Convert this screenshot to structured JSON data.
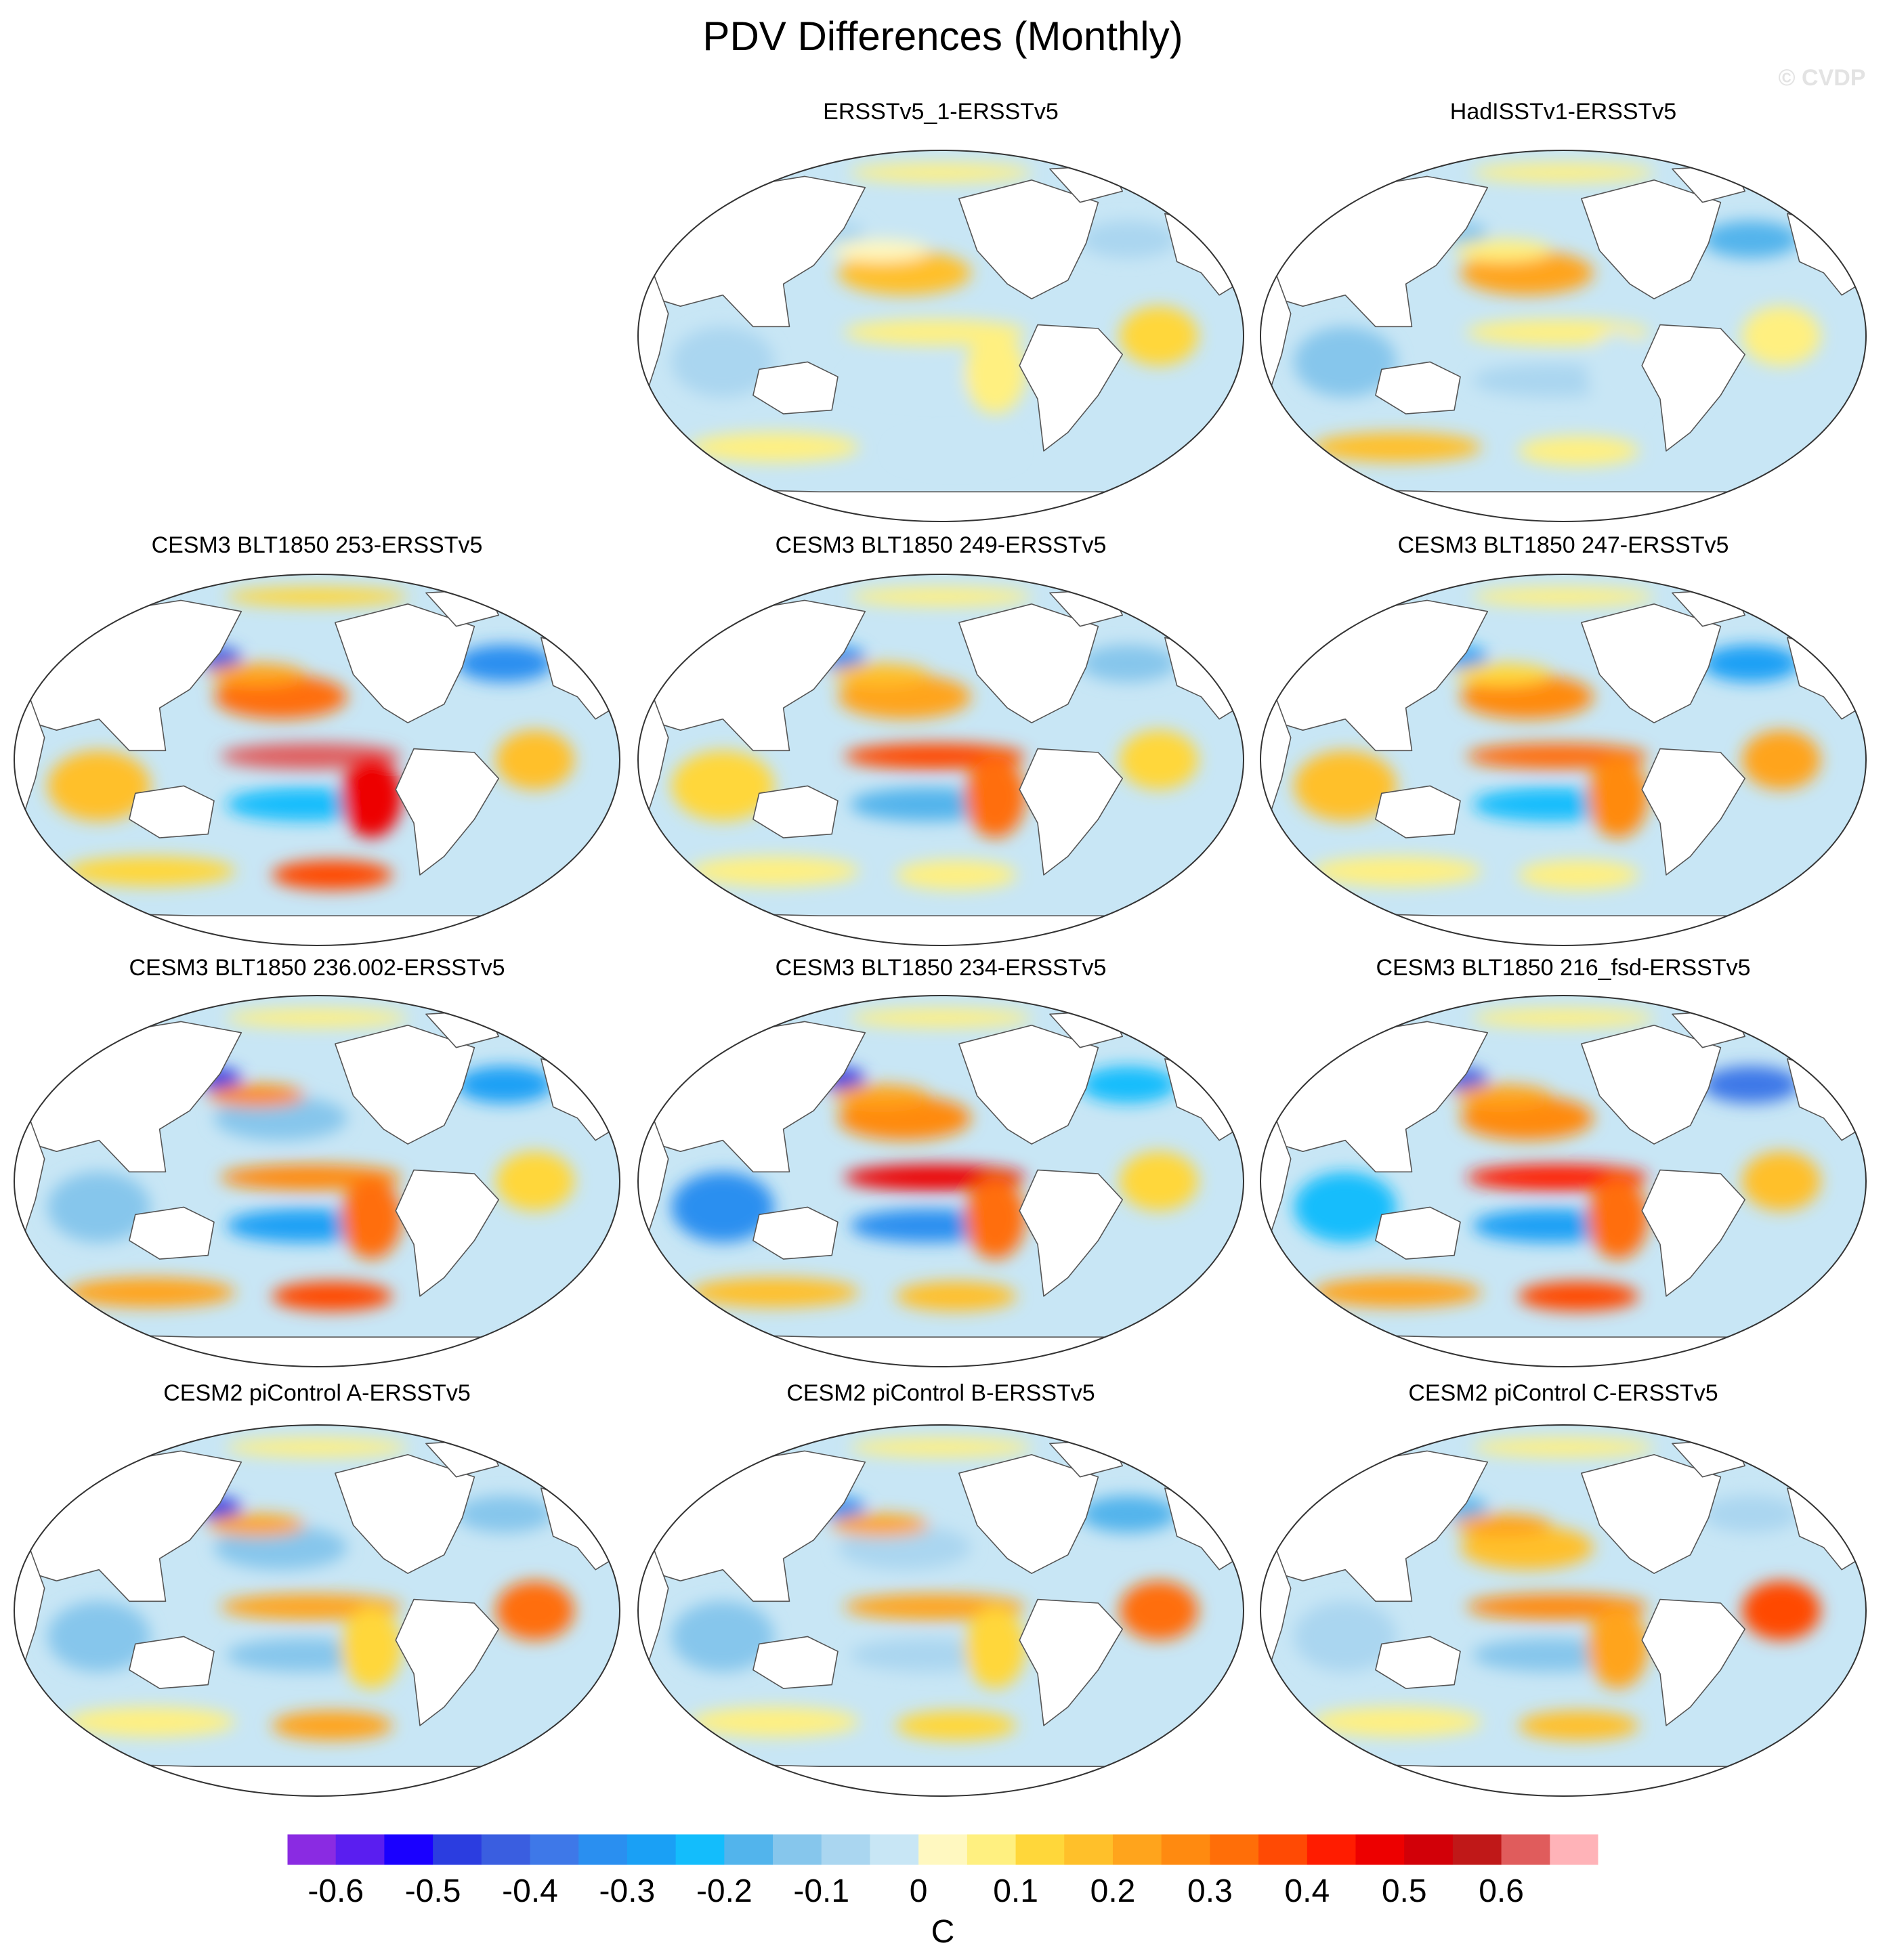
{
  "title": "PDV Differences (Monthly)",
  "watermark": "© CVDP",
  "colorbar_units": "C",
  "chart_data": {
    "type": "heatmap",
    "projection": "Robinson global map",
    "title": "PDV Differences (Monthly)",
    "units": "C",
    "levels": [
      -0.65,
      -0.6,
      -0.55,
      -0.5,
      -0.45,
      -0.4,
      -0.35,
      -0.3,
      -0.25,
      -0.2,
      -0.15,
      -0.1,
      -0.05,
      0,
      0.05,
      0.1,
      0.15,
      0.2,
      0.25,
      0.3,
      0.35,
      0.4,
      0.45,
      0.5,
      0.55,
      0.6,
      0.65
    ],
    "colorbar_ticks": [
      -0.6,
      -0.5,
      -0.4,
      -0.3,
      -0.2,
      -0.1,
      0,
      0.1,
      0.2,
      0.3,
      0.4,
      0.5,
      0.6
    ],
    "colorbar_tick_labels": [
      "-0.6",
      "-0.5",
      "-0.4",
      "-0.3",
      "-0.2",
      "-0.1",
      "0",
      "0.1",
      "0.2",
      "0.3",
      "0.4",
      "0.5",
      "0.6"
    ],
    "colors": [
      "#8a2be2",
      "#5a1ef0",
      "#1a00ff",
      "#2b3de0",
      "#3a5ee0",
      "#3e78e8",
      "#2a8ff0",
      "#1aa0f5",
      "#13bdfc",
      "#52b4ec",
      "#86c6ec",
      "#aad6f0",
      "#c8e6f5",
      "#fff8c0",
      "#fff080",
      "#ffd73a",
      "#ffc02a",
      "#ffa41c",
      "#ff8a10",
      "#ff6e08",
      "#ff4a04",
      "#ff1c00",
      "#ed0000",
      "#d20008",
      "#c01818",
      "#e05c5c",
      "#ffb3b8"
    ],
    "panels": [
      {
        "title": "ERSSTv5_1-ERSSTv5",
        "values": {
          "north_pacific": 0.15,
          "north_pacific_west": -0.1,
          "kuroshio": 0,
          "tropical_pacific": 0.05,
          "south_pacific_band": -0.05,
          "se_pacific": 0.05,
          "south_pacific_high": -0.05,
          "north_atlantic": -0.1,
          "tropical_atlantic": 0.1,
          "indian_ocean": -0.1,
          "southern_ocean": 0.05,
          "arctic": 0.05
        }
      },
      {
        "title": "HadISSTv1-ERSSTv5",
        "values": {
          "north_pacific": 0.2,
          "north_pacific_west": -0.15,
          "kuroshio": 0.05,
          "tropical_pacific": 0.05,
          "south_pacific_band": -0.1,
          "se_pacific": -0.05,
          "south_pacific_high": 0.05,
          "north_atlantic": -0.2,
          "tropical_atlantic": 0.05,
          "indian_ocean": -0.15,
          "southern_ocean": 0.15,
          "arctic": 0.05
        }
      },
      {
        "title": "CESM3 BLT1850 253-ERSSTv5",
        "values": {
          "north_pacific": 0.3,
          "north_pacific_west": -0.45,
          "kuroshio": 0.2,
          "tropical_pacific": 0.6,
          "south_pacific_band": -0.25,
          "se_pacific": 0.45,
          "south_pacific_high": 0.35,
          "north_atlantic": -0.35,
          "tropical_atlantic": 0.15,
          "indian_ocean": 0.15,
          "southern_ocean": 0.1,
          "arctic": 0.1
        }
      },
      {
        "title": "CESM3 BLT1850 249-ERSSTv5",
        "values": {
          "north_pacific": 0.2,
          "north_pacific_west": -0.35,
          "kuroshio": 0.15,
          "tropical_pacific": 0.35,
          "south_pacific_band": -0.2,
          "se_pacific": 0.3,
          "south_pacific_high": 0.05,
          "north_atlantic": -0.15,
          "tropical_atlantic": 0.1,
          "indian_ocean": 0.1,
          "southern_ocean": 0.05,
          "arctic": 0.05
        }
      },
      {
        "title": "CESM3 BLT1850 247-ERSSTv5",
        "values": {
          "north_pacific": 0.25,
          "north_pacific_west": -0.3,
          "kuroshio": 0.1,
          "tropical_pacific": 0.3,
          "south_pacific_band": -0.25,
          "se_pacific": 0.25,
          "south_pacific_high": 0.05,
          "north_atlantic": -0.3,
          "tropical_atlantic": 0.2,
          "indian_ocean": 0.15,
          "southern_ocean": 0.05,
          "arctic": 0.05
        }
      },
      {
        "title": "CESM3 BLT1850 236.002-ERSSTv5",
        "values": {
          "north_pacific": -0.15,
          "north_pacific_west": -0.5,
          "kuroshio": 0.25,
          "tropical_pacific": 0.25,
          "south_pacific_band": -0.3,
          "se_pacific": 0.3,
          "south_pacific_high": 0.35,
          "north_atlantic": -0.3,
          "tropical_atlantic": 0.1,
          "indian_ocean": -0.15,
          "southern_ocean": 0.2,
          "arctic": 0.05
        }
      },
      {
        "title": "CESM3 BLT1850 234-ERSSTv5",
        "values": {
          "north_pacific": 0.25,
          "north_pacific_west": -0.5,
          "kuroshio": 0.2,
          "tropical_pacific": 0.45,
          "south_pacific_band": -0.35,
          "se_pacific": 0.3,
          "south_pacific_high": 0.15,
          "north_atlantic": -0.25,
          "tropical_atlantic": 0.1,
          "indian_ocean": -0.35,
          "southern_ocean": 0.15,
          "arctic": 0.05
        }
      },
      {
        "title": "CESM3 BLT1850 216_fsd-ERSSTv5",
        "values": {
          "north_pacific": 0.25,
          "north_pacific_west": -0.45,
          "kuroshio": 0.2,
          "tropical_pacific": 0.4,
          "south_pacific_band": -0.3,
          "se_pacific": 0.3,
          "south_pacific_high": 0.35,
          "north_atlantic": -0.4,
          "tropical_atlantic": 0.15,
          "indian_ocean": -0.25,
          "southern_ocean": 0.2,
          "arctic": 0.05
        }
      },
      {
        "title": "CESM2 piControl A-ERSSTv5",
        "values": {
          "north_pacific": -0.15,
          "north_pacific_west": -0.5,
          "kuroshio": 0.2,
          "tropical_pacific": 0.2,
          "south_pacific_band": -0.15,
          "se_pacific": 0.1,
          "south_pacific_high": 0.2,
          "north_atlantic": -0.15,
          "tropical_atlantic": 0.3,
          "indian_ocean": -0.15,
          "southern_ocean": 0.05,
          "arctic": 0.05
        }
      },
      {
        "title": "CESM2 piControl B-ERSSTv5",
        "values": {
          "north_pacific": -0.1,
          "north_pacific_west": -0.35,
          "kuroshio": 0.2,
          "tropical_pacific": 0.2,
          "south_pacific_band": -0.1,
          "se_pacific": 0.1,
          "south_pacific_high": 0.1,
          "north_atlantic": -0.2,
          "tropical_atlantic": 0.3,
          "indian_ocean": -0.15,
          "southern_ocean": 0.05,
          "arctic": 0.05
        }
      },
      {
        "title": "CESM2 piControl C-ERSSTv5",
        "values": {
          "north_pacific": 0.15,
          "north_pacific_west": -0.2,
          "kuroshio": 0.2,
          "tropical_pacific": 0.25,
          "south_pacific_band": -0.15,
          "se_pacific": 0.2,
          "south_pacific_high": 0.15,
          "north_atlantic": -0.1,
          "tropical_atlantic": 0.35,
          "indian_ocean": -0.1,
          "southern_ocean": 0.05,
          "arctic": 0.05
        }
      }
    ]
  }
}
